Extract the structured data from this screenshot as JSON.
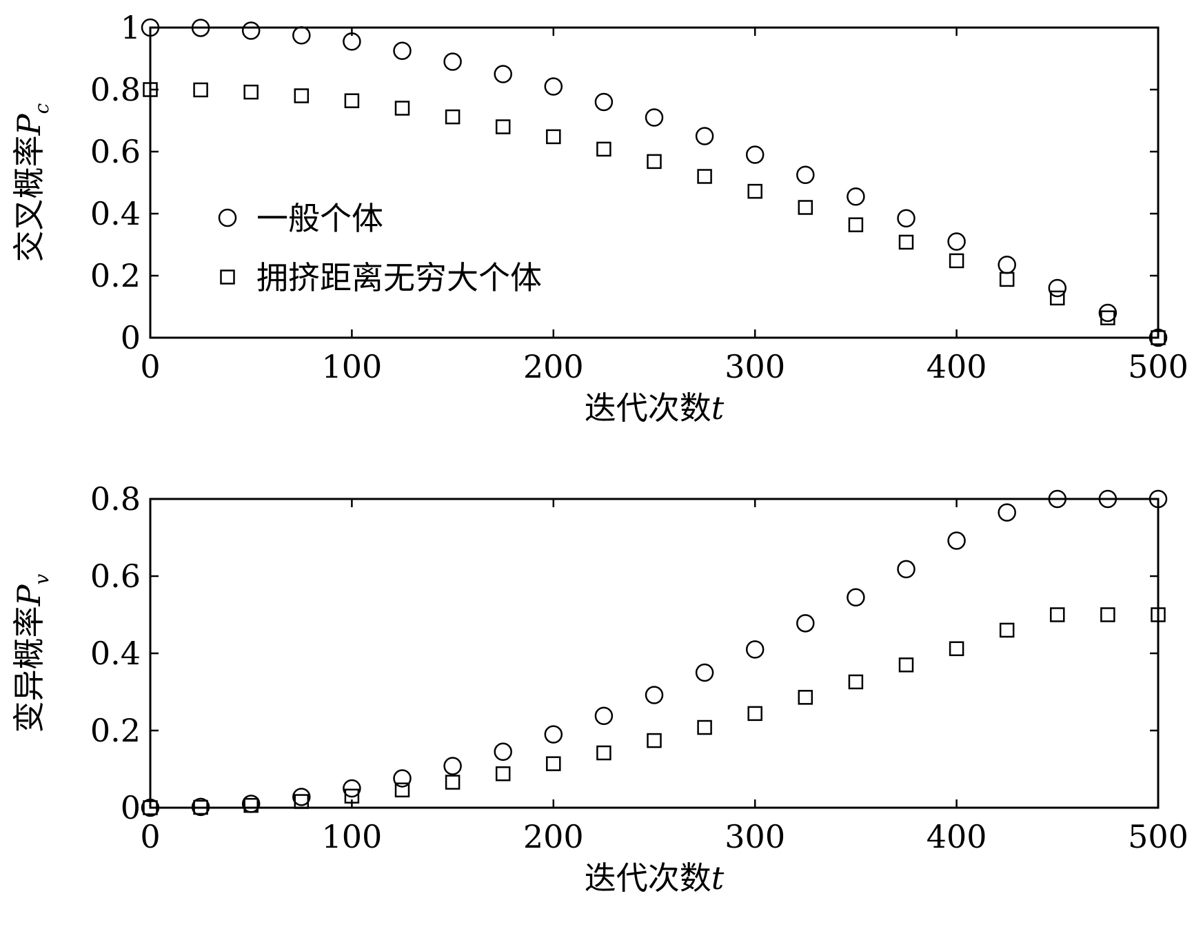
{
  "chart_data": [
    {
      "type": "scatter",
      "ylabel": "交叉概率",
      "ylabel_symbol": "P",
      "ylabel_subscript": "c",
      "xlabel": "迭代次数",
      "xlabel_symbol": "t",
      "xlim": [
        0,
        500
      ],
      "ylim": [
        0,
        1
      ],
      "xticks": [
        0,
        100,
        200,
        300,
        400,
        500
      ],
      "xtick_labels": [
        "0",
        "100",
        "200",
        "300",
        "400",
        "500"
      ],
      "yticks": [
        0,
        0.2,
        0.4,
        0.6,
        0.8,
        1
      ],
      "ytick_labels": [
        "0",
        "0.2",
        "0.4",
        "0.6",
        "0.8",
        "1"
      ],
      "grid": false,
      "legend": "upper-left-center",
      "x": [
        0,
        25,
        50,
        75,
        100,
        125,
        150,
        175,
        200,
        225,
        250,
        275,
        300,
        325,
        350,
        375,
        400,
        425,
        450,
        475,
        500
      ],
      "series": [
        {
          "name": "一般个体",
          "marker": "circle",
          "values": [
            1.0,
            0.999,
            0.99,
            0.975,
            0.955,
            0.925,
            0.89,
            0.85,
            0.81,
            0.76,
            0.71,
            0.65,
            0.59,
            0.525,
            0.455,
            0.385,
            0.31,
            0.235,
            0.16,
            0.08,
            0.0
          ]
        },
        {
          "name": "拥挤距离无穷大个体",
          "marker": "square",
          "values": [
            0.8,
            0.799,
            0.792,
            0.78,
            0.764,
            0.74,
            0.712,
            0.68,
            0.648,
            0.608,
            0.568,
            0.52,
            0.472,
            0.42,
            0.364,
            0.308,
            0.248,
            0.188,
            0.128,
            0.064,
            0.0
          ]
        }
      ]
    },
    {
      "type": "scatter",
      "ylabel": "变异概率",
      "ylabel_symbol": "P",
      "ylabel_subscript": "v",
      "xlabel": "迭代次数",
      "xlabel_symbol": "t",
      "xlim": [
        0,
        500
      ],
      "ylim": [
        0,
        0.8
      ],
      "xticks": [
        0,
        100,
        200,
        300,
        400,
        500
      ],
      "xtick_labels": [
        "0",
        "100",
        "200",
        "300",
        "400",
        "500"
      ],
      "yticks": [
        0,
        0.2,
        0.4,
        0.6,
        0.8
      ],
      "ytick_labels": [
        "0",
        "0.2",
        "0.4",
        "0.6",
        "0.8"
      ],
      "grid": false,
      "x": [
        0,
        25,
        50,
        75,
        100,
        125,
        150,
        175,
        200,
        225,
        250,
        275,
        300,
        325,
        350,
        375,
        400,
        425,
        450,
        475,
        500
      ],
      "series": [
        {
          "name": "一般个体",
          "marker": "circle",
          "values": [
            0.0,
            0.002,
            0.01,
            0.028,
            0.05,
            0.076,
            0.108,
            0.145,
            0.19,
            0.238,
            0.292,
            0.35,
            0.41,
            0.478,
            0.545,
            0.618,
            0.692,
            0.765,
            0.8,
            0.8,
            0.8
          ]
        },
        {
          "name": "拥挤距离无穷大个体",
          "marker": "square",
          "values": [
            0.0,
            0.001,
            0.006,
            0.016,
            0.03,
            0.046,
            0.066,
            0.088,
            0.114,
            0.142,
            0.174,
            0.208,
            0.244,
            0.286,
            0.326,
            0.37,
            0.412,
            0.46,
            0.5,
            0.5,
            0.5
          ]
        }
      ]
    }
  ]
}
